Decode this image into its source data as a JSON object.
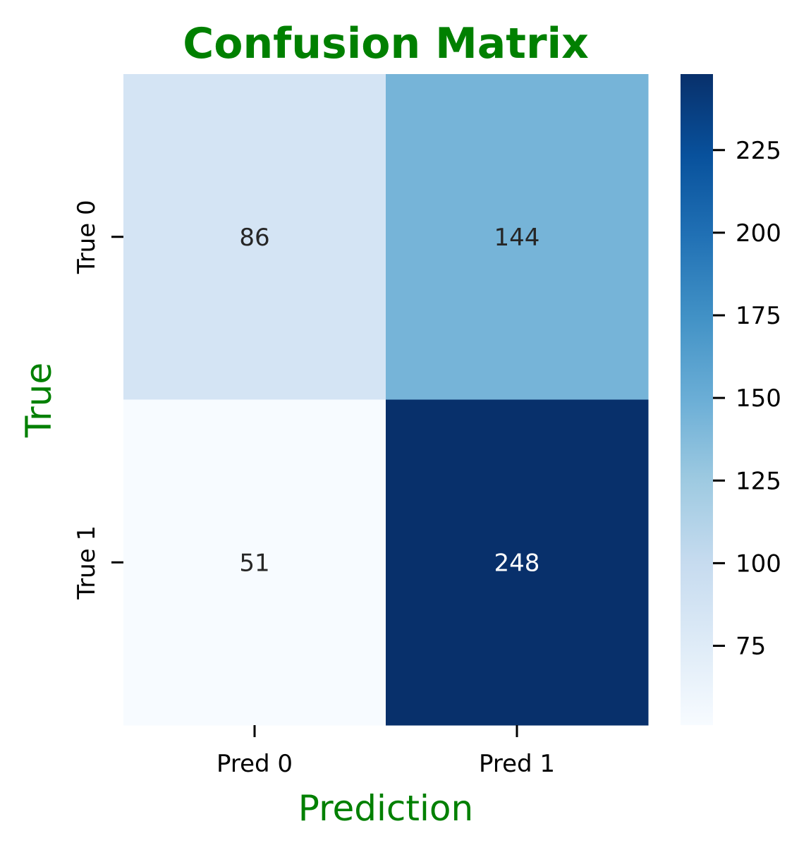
{
  "chart_data": {
    "type": "heatmap",
    "title": "Confusion Matrix",
    "xlabel": "Prediction",
    "ylabel": "True",
    "x_categories": [
      "Pred 0",
      "Pred 1"
    ],
    "y_categories": [
      "True 0",
      "True 1"
    ],
    "values": [
      [
        86,
        144
      ],
      [
        51,
        248
      ]
    ],
    "colormap": "Blues",
    "colorbar": {
      "range": [
        51,
        248
      ],
      "ticks": [
        75,
        100,
        125,
        150,
        175,
        200,
        225
      ]
    },
    "grid": false
  },
  "colors": {
    "title": "#008000",
    "axis_label": "#008000",
    "text_dark": "#262626",
    "text_light": "#ffffff"
  }
}
